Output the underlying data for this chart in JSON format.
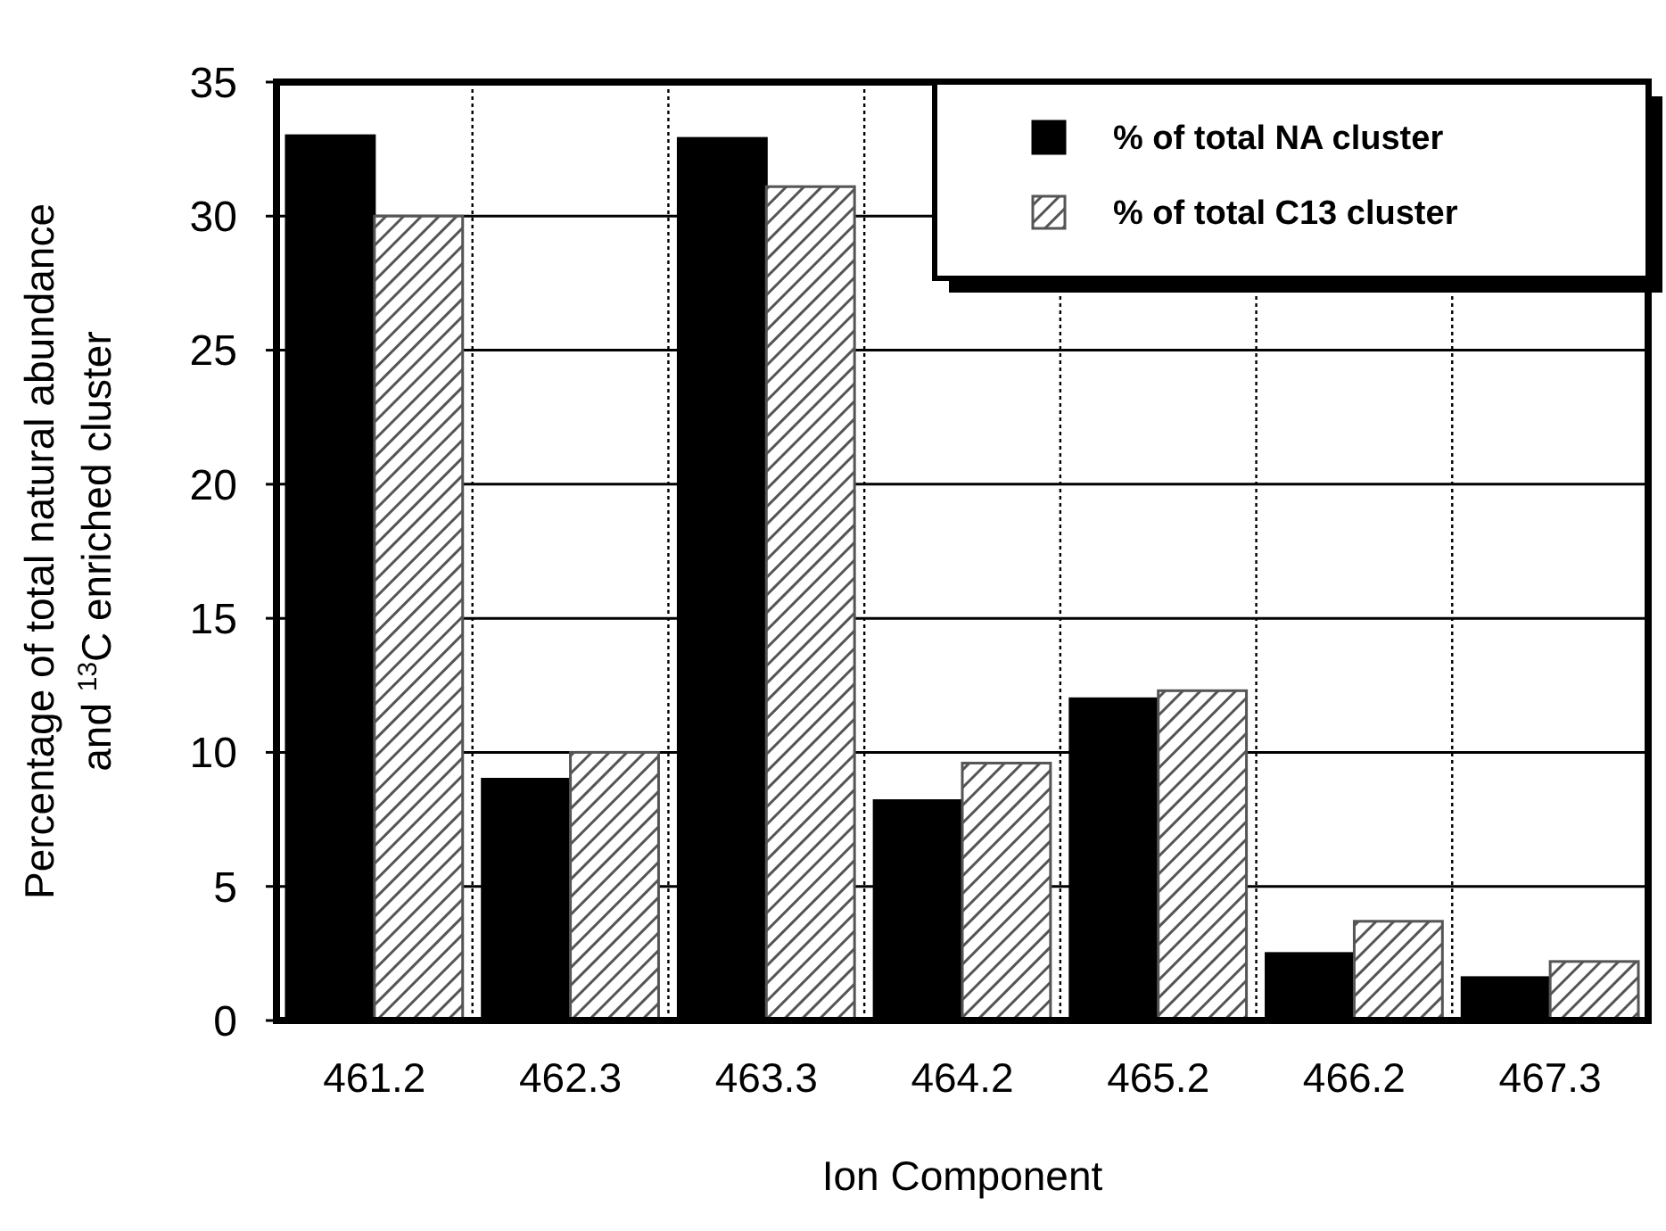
{
  "chart_data": {
    "type": "bar",
    "xlabel": "Ion Component",
    "ylabel": "Percentage of total natural abundance\nand $^{13}$C enriched cluster",
    "categories": [
      "461.2",
      "462.3",
      "463.3",
      "464.2",
      "465.2",
      "466.2",
      "467.3"
    ],
    "series": [
      {
        "name": "% of total NA cluster",
        "color": "#000000",
        "values": [
          33.0,
          9.0,
          32.9,
          8.2,
          12.0,
          2.5,
          1.6
        ]
      },
      {
        "name": "% of total C13 cluster",
        "color": "#555555",
        "values": [
          30.0,
          10.0,
          31.1,
          9.6,
          12.3,
          3.7,
          2.2
        ]
      }
    ],
    "ylim": [
      0,
      35
    ],
    "yticks": [
      0,
      5,
      10,
      15,
      20,
      25,
      30,
      35
    ],
    "grid": true,
    "legend": "top right"
  }
}
